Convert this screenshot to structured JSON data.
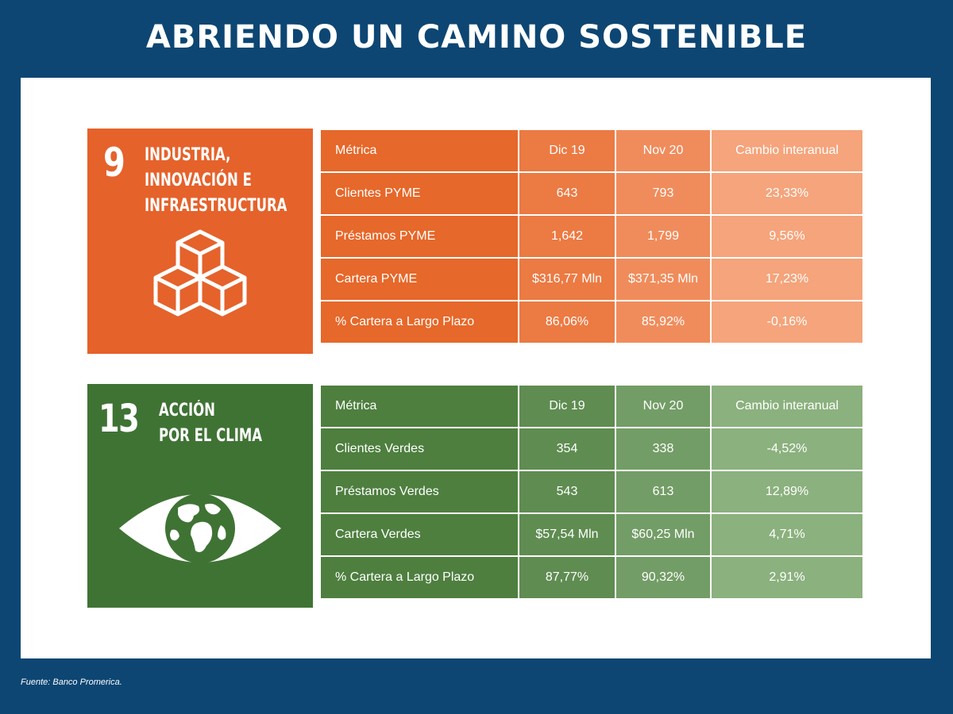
{
  "title": "ABRIENDO UN CAMINO SOSTENIBLE",
  "source": "Fuente: Banco Promerica.",
  "colors": {
    "background": "#0d4673",
    "sdg9": "#e5622b",
    "sdg13": "#3f7334"
  },
  "sdg9": {
    "number": "9",
    "label": [
      "INDUSTRIA,",
      "INNOVACIÓN E",
      "INFRAESTRUCTURA"
    ],
    "icon": "stacked-cubes-icon",
    "headers": [
      "Métrica",
      "Dic 19",
      "Nov 20",
      "Cambio interanual"
    ],
    "rows": [
      [
        "Clientes PYME",
        "643",
        "793",
        "23,33%"
      ],
      [
        "Préstamos PYME",
        "1,642",
        "1,799",
        "9,56%"
      ],
      [
        "Cartera PYME",
        "$316,77 Mln",
        "$371,35 Mln",
        "17,23%"
      ],
      [
        "% Cartera a Largo Plazo",
        "86,06%",
        "85,92%",
        "-0,16%"
      ]
    ]
  },
  "sdg13": {
    "number": "13",
    "label": [
      "ACCIÓN",
      "POR EL CLIMA"
    ],
    "icon": "eye-globe-icon",
    "headers": [
      "Métrica",
      "Dic 19",
      "Nov 20",
      "Cambio interanual"
    ],
    "rows": [
      [
        "Clientes Verdes",
        "354",
        "338",
        "-4,52%"
      ],
      [
        "Préstamos Verdes",
        "543",
        "613",
        "12,89%"
      ],
      [
        "Cartera Verdes",
        "$57,54 Mln",
        "$60,25 Mln",
        "4,71%"
      ],
      [
        "% Cartera a Largo Plazo",
        "87,77%",
        "90,32%",
        "2,91%"
      ]
    ]
  }
}
